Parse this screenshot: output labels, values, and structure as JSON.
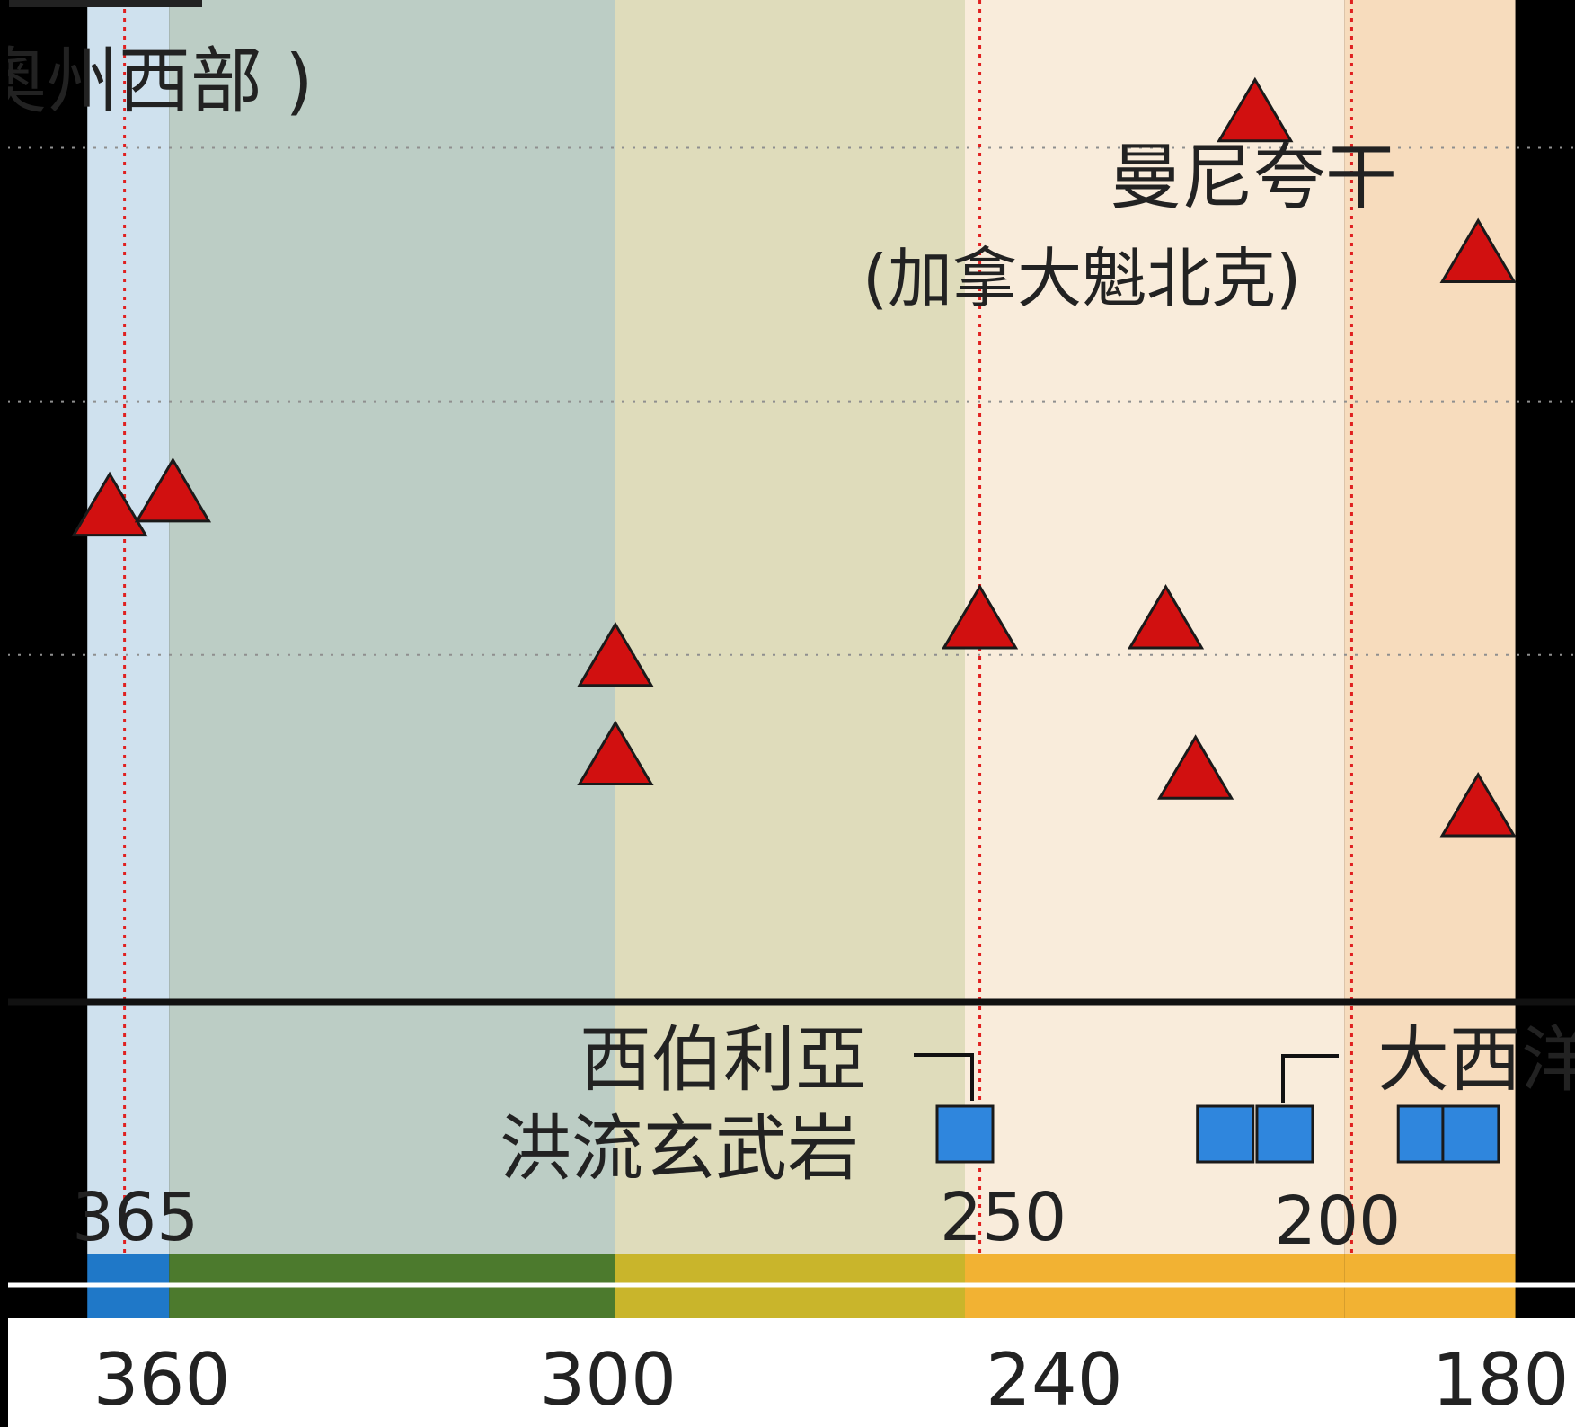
{
  "chart_data": {
    "type": "scatter",
    "title": "",
    "xlabel": "",
    "ylabel": "",
    "x_axis": {
      "orientation": "reversed",
      "ticks": [
        360,
        300,
        240,
        180
      ],
      "xlim": [
        370,
        178
      ]
    },
    "period_boundaries": [
      365,
      250,
      200
    ],
    "period_bands": [
      {
        "from": 370,
        "to": 359,
        "bg": "#cfe1ee",
        "bar": "#1f78c8"
      },
      {
        "from": 359,
        "to": 299,
        "bg": "#bccdc5",
        "bar": "#4c7a2d"
      },
      {
        "from": 299,
        "to": 252,
        "bg": "#dfdcbb",
        "bar": "#c9b52b"
      },
      {
        "from": 252,
        "to": 201,
        "bg": "#f9ecdb",
        "bar": "#f2b233"
      },
      {
        "from": 201,
        "to": 178,
        "bg": "#f7dcbd",
        "bar": "#f2b233"
      }
    ],
    "series": [
      {
        "marker": "triangle",
        "color": "#d11010",
        "points": [
          {
            "x": 213,
            "y": 0.94
          },
          {
            "x": 183,
            "y": 0.79
          },
          {
            "x": 367,
            "y": 0.52
          },
          {
            "x": 358.5,
            "y": 0.535
          },
          {
            "x": 299,
            "y": 0.36
          },
          {
            "x": 250,
            "y": 0.4
          },
          {
            "x": 225,
            "y": 0.4
          },
          {
            "x": 299,
            "y": 0.255
          },
          {
            "x": 221,
            "y": 0.24
          },
          {
            "x": 183,
            "y": 0.2
          }
        ]
      },
      {
        "marker": "square",
        "color": "#2f86dd",
        "points": [
          {
            "x": 252,
            "y": 0
          },
          {
            "x": 217,
            "y": 0
          },
          {
            "x": 209,
            "y": 0
          },
          {
            "x": 190,
            "y": 0
          },
          {
            "x": 184,
            "y": 0
          }
        ]
      }
    ],
    "annotations": [
      {
        "id": "west-australia",
        "text": "奧州西部 )"
      },
      {
        "id": "manicouagan",
        "text": "曼尼夸干"
      },
      {
        "id": "quebec",
        "text": "(加拿大魁北克)"
      },
      {
        "id": "siberia-1",
        "text": "西伯利亞"
      },
      {
        "id": "siberia-2",
        "text": "洪流玄武岩"
      },
      {
        "id": "atlantic",
        "text": "大西洋"
      },
      {
        "id": "boundary-365",
        "text": "365"
      },
      {
        "id": "boundary-250",
        "text": "250"
      },
      {
        "id": "boundary-200",
        "text": "200"
      }
    ],
    "grid": true
  }
}
